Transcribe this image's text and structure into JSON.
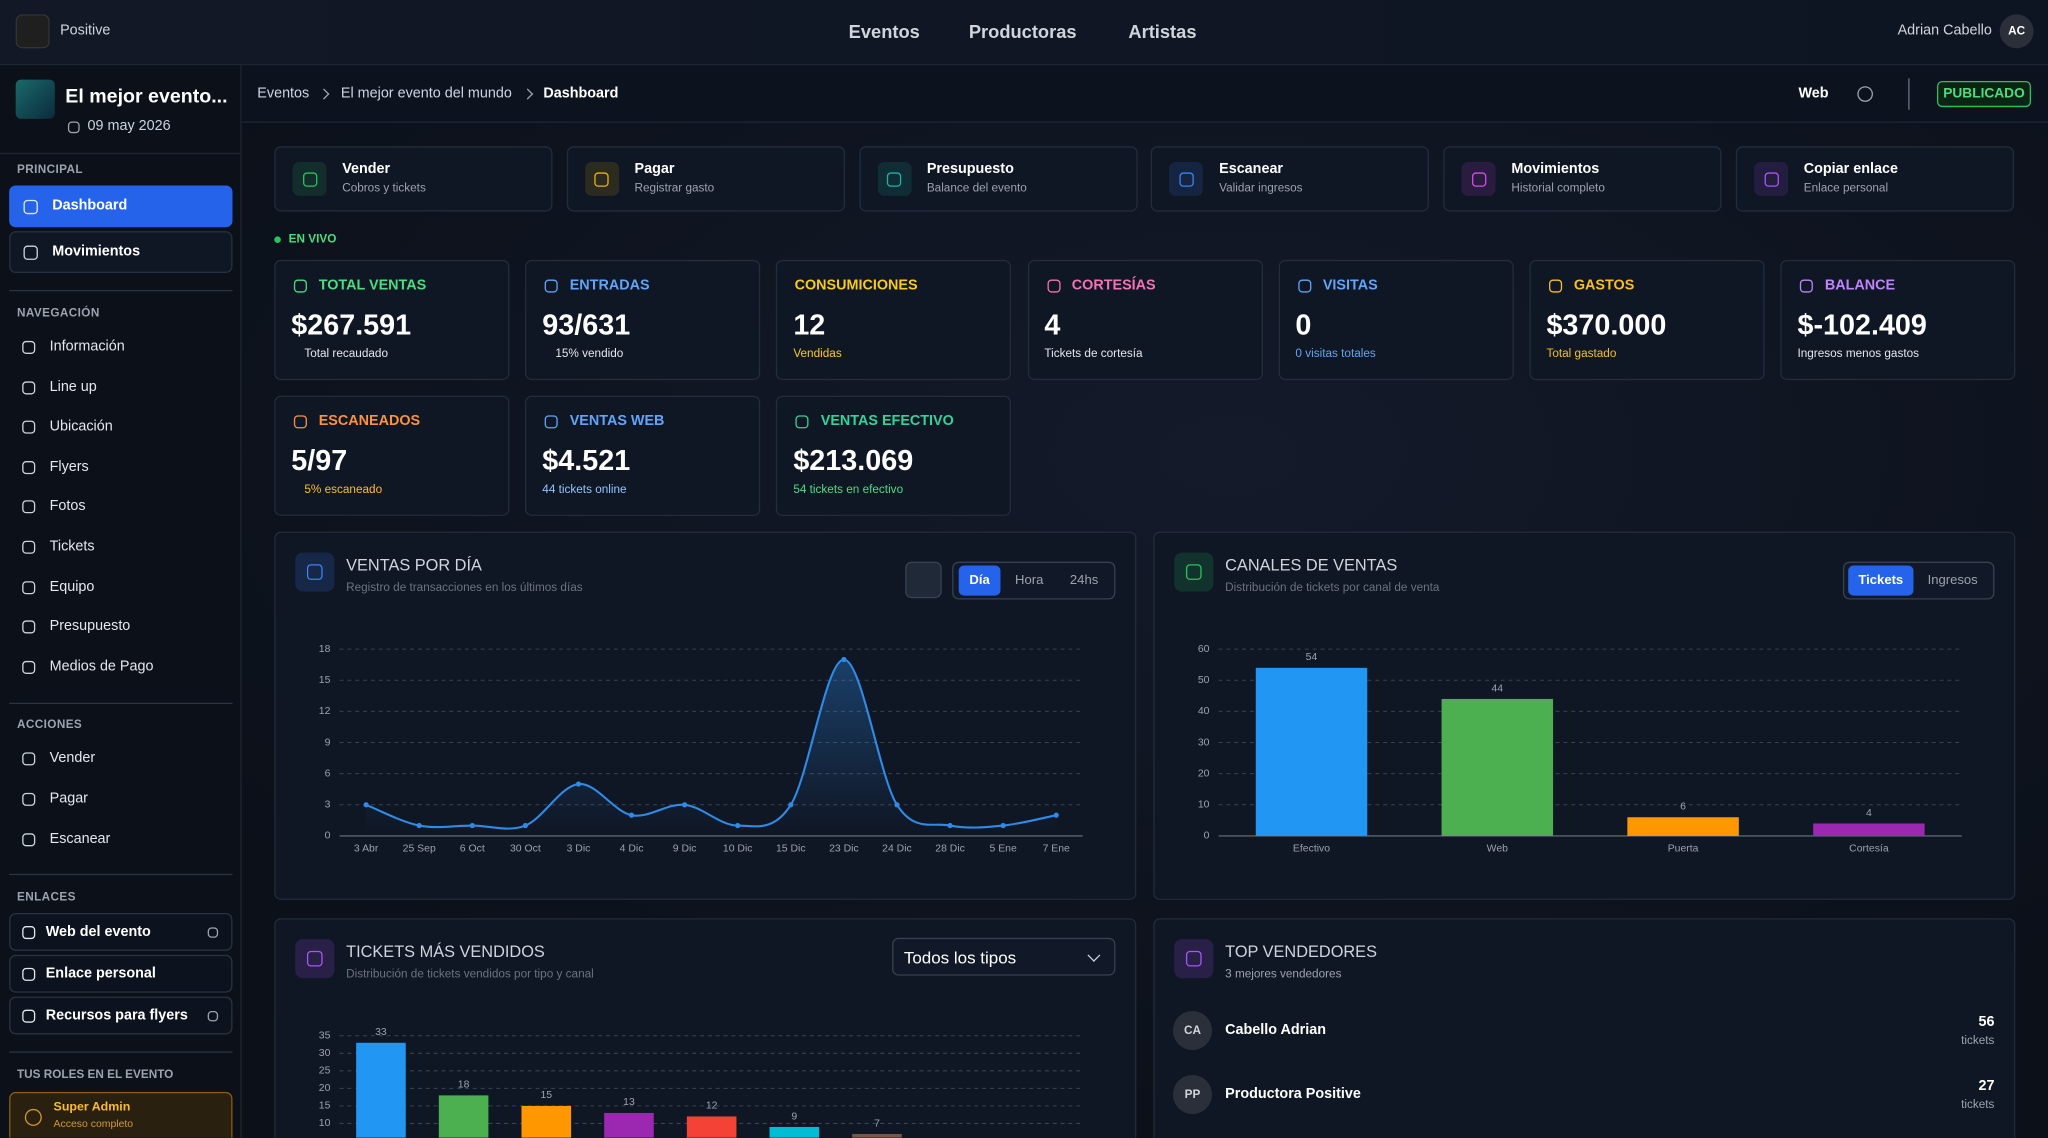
{
  "topbar": {
    "brand": "Positive",
    "nav": [
      "Eventos",
      "Productoras",
      "Artistas"
    ],
    "user": "Adrian Cabello",
    "initials": "AC"
  },
  "sidebar": {
    "event_title": "El mejor evento...",
    "date": "09 may 2026",
    "sections": [
      {
        "title": "PRINCIPAL",
        "items": [
          "Dashboard",
          "Movimientos"
        ]
      },
      {
        "title": "NAVEGACIÓN",
        "items": [
          "Información",
          "Line up",
          "Ubicación",
          "Flyers",
          "Fotos",
          "Tickets",
          "Equipo",
          "Presupuesto",
          "Medios de Pago"
        ]
      },
      {
        "title": "ACCIONES",
        "items": [
          "Vender",
          "Pagar",
          "Escanear"
        ]
      },
      {
        "title": "ENLACES",
        "items": [
          "Web del evento",
          "Enlace personal",
          "Recursos para flyers"
        ]
      }
    ],
    "roles": {
      "title": "TUS ROLES EN EL EVENTO",
      "name": "Super Admin",
      "desc": "Acceso completo"
    }
  },
  "header": {
    "breadcrumb": [
      "Eventos",
      "El mejor evento del mundo",
      "Dashboard"
    ],
    "web": "Web",
    "status": "PUBLICADO"
  },
  "actions": [
    {
      "title": "Vender",
      "subtitle": "Cobros y tickets"
    },
    {
      "title": "Pagar",
      "subtitle": "Registrar gasto"
    },
    {
      "title": "Presupuesto",
      "subtitle": "Balance del evento"
    },
    {
      "title": "Escanear",
      "subtitle": "Validar ingresos"
    },
    {
      "title": "Movimientos",
      "subtitle": "Historial completo"
    },
    {
      "title": "Copiar enlace",
      "subtitle": "Enlace personal"
    }
  ],
  "live": "EN VIVO",
  "stats": [
    {
      "label": "TOTAL VENTAS",
      "value": "$267.591",
      "note": "Total recaudado"
    },
    {
      "label": "ENTRADAS",
      "value": "93/631",
      "note": "15% vendido"
    },
    {
      "label": "CONSUMICIONES",
      "value": "12",
      "note": "Vendidas"
    },
    {
      "label": "CORTESÍAS",
      "value": "4",
      "note": "Tickets de cortesía"
    },
    {
      "label": "VISITAS",
      "value": "0",
      "note": "0 visitas totales"
    },
    {
      "label": "GASTOS",
      "value": "$370.000",
      "note": "Total gastado"
    },
    {
      "label": "BALANCE",
      "value": "$-102.409",
      "note": "Ingresos menos gastos"
    },
    {
      "label": "ESCANEADOS",
      "value": "5/97",
      "note": "5% escaneado"
    },
    {
      "label": "VENTAS WEB",
      "value": "$4.521",
      "note": "44 tickets online"
    },
    {
      "label": "VENTAS EFECTIVO",
      "value": "$213.069",
      "note": "54 tickets en efectivo"
    }
  ],
  "chart_data": [
    {
      "type": "line",
      "title": "VENTAS POR DÍA",
      "subtitle": "Registro de transacciones en los últimos días",
      "tabs": [
        "Día",
        "Hora",
        "24hs"
      ],
      "categories": [
        "3 Abr",
        "25 Sep",
        "6 Oct",
        "30 Oct",
        "3 Dic",
        "4 Dic",
        "9 Dic",
        "10 Dic",
        "15 Dic",
        "23 Dic",
        "24 Dic",
        "28 Dic",
        "5 Ene",
        "7 Ene"
      ],
      "values": [
        3,
        1,
        1,
        1,
        5,
        2,
        3,
        1,
        3,
        17,
        3,
        1,
        1,
        2
      ],
      "color": "#2f8be6",
      "ylim": [
        0,
        18
      ],
      "yticks": [
        0,
        3,
        6,
        9,
        12,
        15,
        18
      ],
      "grid": true
    },
    {
      "type": "bar",
      "title": "CANALES DE VENTAS",
      "subtitle": "Distribución de tickets por canal de venta",
      "tabs": [
        "Tickets",
        "Ingresos"
      ],
      "categories": [
        "Efectivo",
        "Web",
        "Puerta",
        "Cortesía"
      ],
      "values": [
        54,
        44,
        6,
        4
      ],
      "colors": [
        "#2196f3",
        "#4caf50",
        "#ff9800",
        "#9c27b0"
      ],
      "ylim": [
        0,
        60
      ],
      "yticks": [
        0,
        10,
        20,
        30,
        40,
        50,
        60
      ],
      "grid": true
    },
    {
      "type": "bar",
      "title": "TICKETS MÁS VENDIDOS",
      "subtitle": "Distribución de tickets vendidos por tipo y canal",
      "filter": "Todos los tipos",
      "categories": [
        null,
        null,
        null,
        null,
        null,
        null,
        null
      ],
      "values": [
        33,
        18,
        15,
        13,
        12,
        9,
        7
      ],
      "colors": [
        "#2196f3",
        "#4caf50",
        "#ff9800",
        "#9c27b0",
        "#f44336",
        "#00bcd4",
        "#795548"
      ],
      "ylim": [
        0,
        35
      ],
      "yticks": [
        10,
        15,
        20,
        25,
        30,
        35
      ],
      "grid": true
    }
  ],
  "sellers": {
    "title": "TOP VENDEDORES",
    "subtitle": "3 mejores vendedores",
    "rows": [
      {
        "initials": "CA",
        "name": "Cabello Adrian",
        "count": 56,
        "unit": "tickets"
      },
      {
        "initials": "PP",
        "name": "Productora Positive",
        "count": 27,
        "unit": "tickets"
      }
    ]
  }
}
